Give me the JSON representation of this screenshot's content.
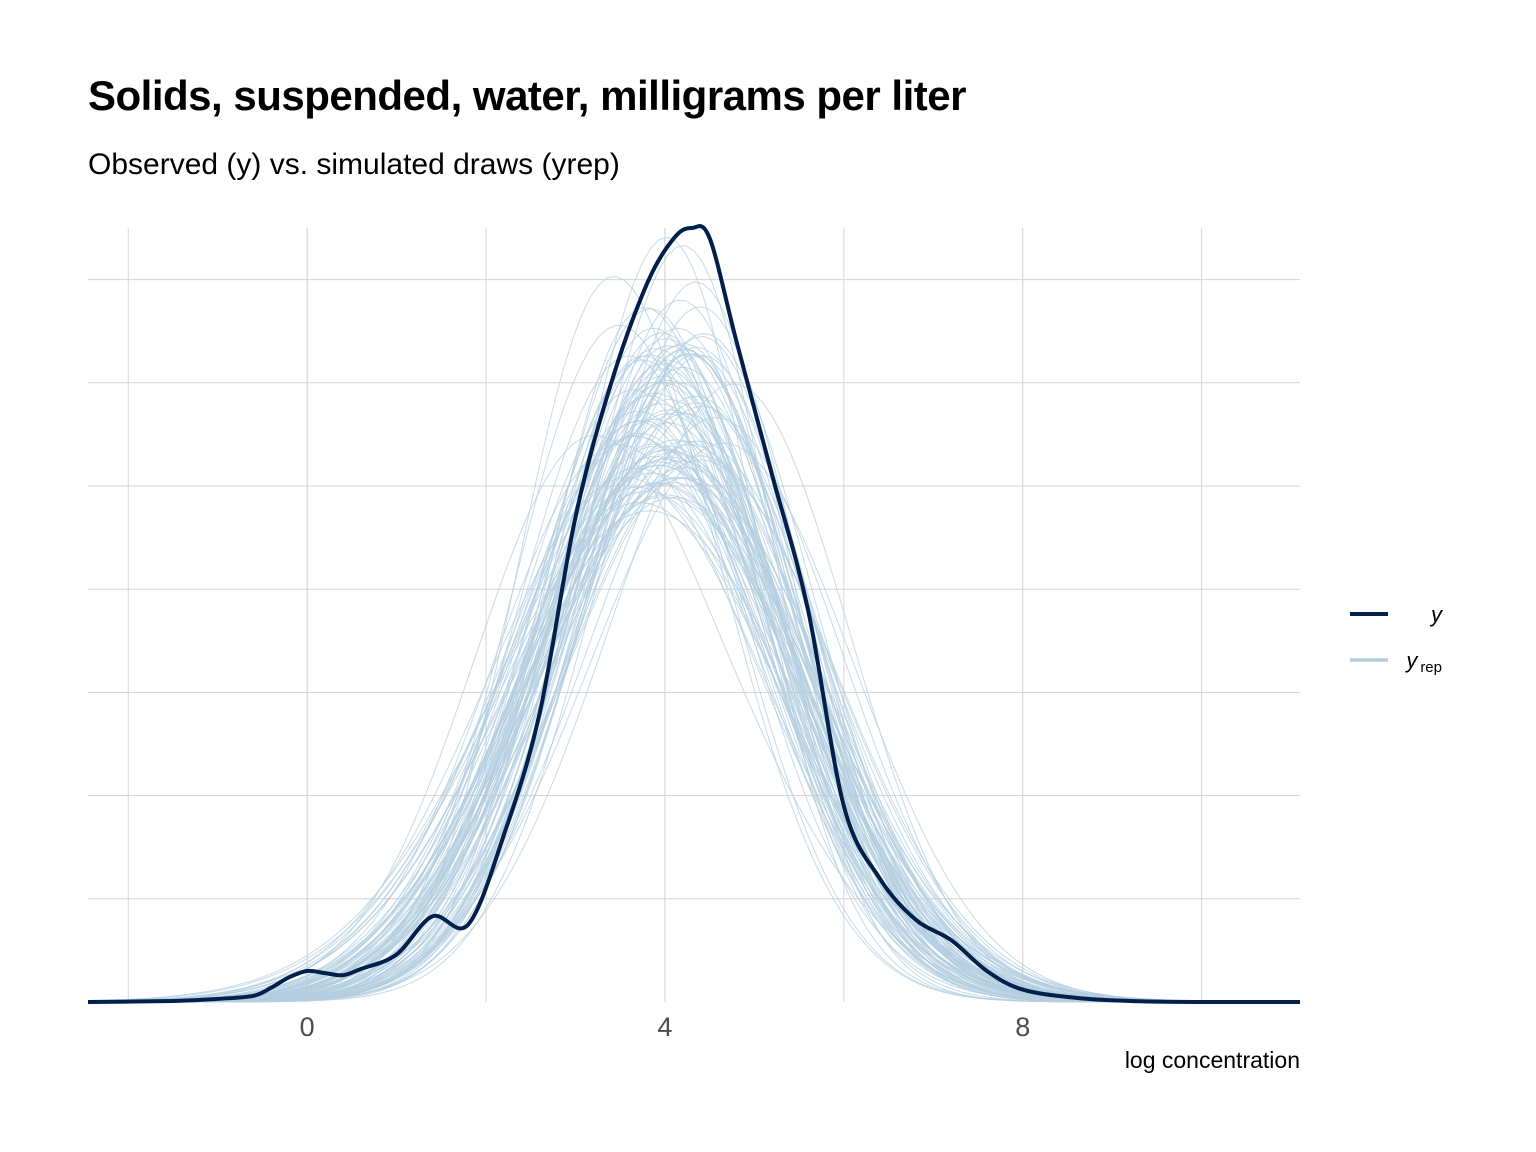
{
  "chart_data": {
    "type": "line",
    "title": "Solids, suspended, water, milligrams per liter",
    "subtitle": "Observed (y) vs. simulated draws (yrep)",
    "xlabel": "log concentration",
    "ylabel": "",
    "xlim": [
      -2.45,
      11.1
    ],
    "ylim": [
      0,
      0.375
    ],
    "x_ticks": [
      0,
      4,
      8
    ],
    "x_tick_labels": [
      "0",
      "4",
      "8"
    ],
    "y_tick_labels_shown": false,
    "grid": true,
    "legend_position": "right",
    "legend": [
      {
        "key": "y",
        "label_main": "y",
        "label_sub": "",
        "color": "#011f4b",
        "role": "observed"
      },
      {
        "key": "yrep",
        "label_main": "y",
        "label_sub": "rep",
        "color": "#b3cde0",
        "role": "simulated"
      }
    ],
    "series": [
      {
        "name": "y",
        "color": "#011f4b",
        "x": [
          -2.45,
          -1.5,
          -1.0,
          -0.6,
          -0.4,
          -0.2,
          0.0,
          0.2,
          0.4,
          0.6,
          1.0,
          1.4,
          1.8,
          2.2,
          2.6,
          3.0,
          3.4,
          3.8,
          4.1,
          4.3,
          4.5,
          4.8,
          5.2,
          5.6,
          6.0,
          6.4,
          6.8,
          7.2,
          7.6,
          8.0,
          8.6,
          9.2,
          10.0,
          11.1
        ],
        "y": [
          0.0,
          0.0005,
          0.0015,
          0.003,
          0.007,
          0.012,
          0.015,
          0.014,
          0.013,
          0.016,
          0.023,
          0.0415,
          0.0375,
          0.081,
          0.14,
          0.235,
          0.3,
          0.348,
          0.37,
          0.375,
          0.37,
          0.32,
          0.255,
          0.19,
          0.095,
          0.06,
          0.04,
          0.03,
          0.015,
          0.006,
          0.002,
          0.0005,
          0.0,
          0.0
        ]
      }
    ],
    "yrep_draws": {
      "count": 100,
      "typical_mean_range": [
        3.6,
        4.4
      ],
      "typical_sd_range": [
        1.15,
        1.6
      ],
      "typical_peak_density_range": [
        0.18,
        0.32
      ],
      "color": "#b3cde0"
    },
    "colors": {
      "y": "#011f4b",
      "yrep": "#b3cde0",
      "grid": "#d3d3d3",
      "text": "#000000",
      "tick_text": "#4d4d4d"
    }
  }
}
